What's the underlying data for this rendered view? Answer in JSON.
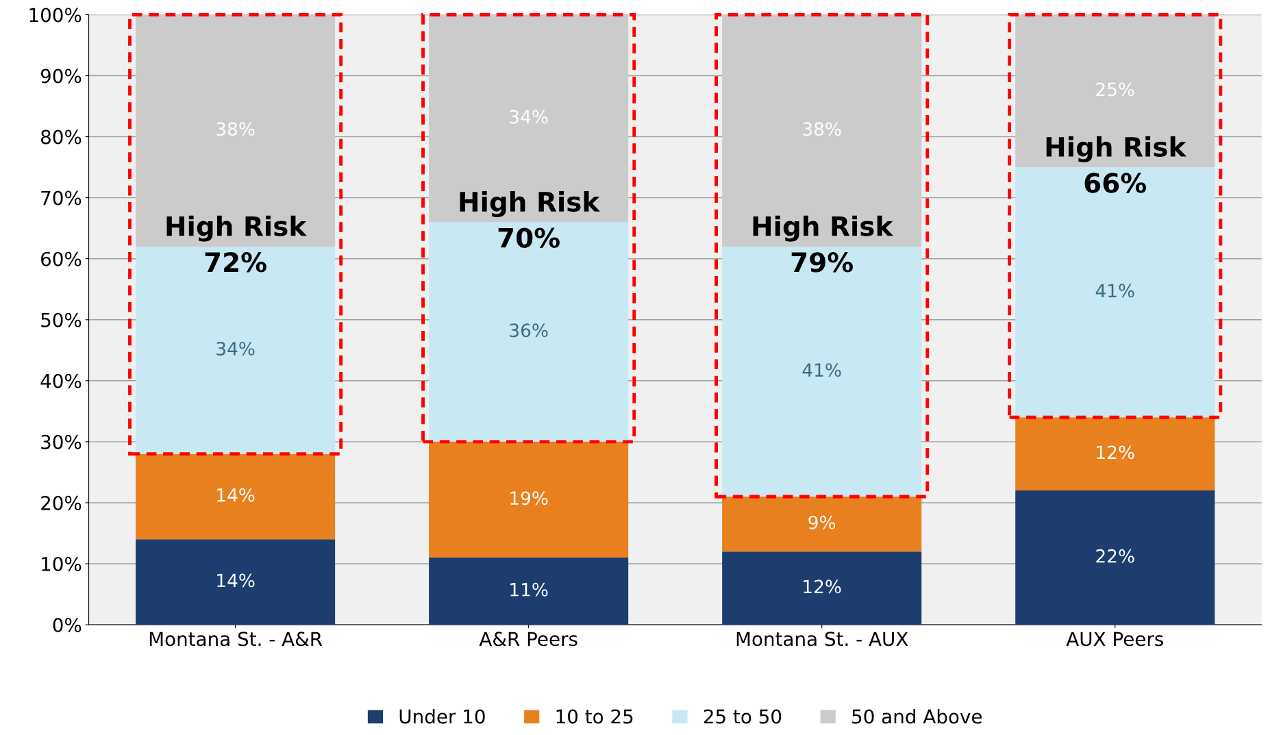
{
  "chart_data": {
    "type": "bar",
    "stacked": true,
    "categories": [
      "Montana St. - A&R",
      "A&R Peers",
      "Montana St. - AUX",
      "AUX Peers"
    ],
    "series": [
      {
        "name": "Under 10",
        "color": "#1c3d6e",
        "values": [
          14,
          11,
          12,
          22
        ],
        "value_labels": [
          "14%",
          "11%",
          "12%",
          "22%"
        ]
      },
      {
        "name": "10 to 25",
        "color": "#e8801f",
        "values": [
          14,
          19,
          9,
          12
        ],
        "value_labels": [
          "14%",
          "19%",
          "9%",
          "12%"
        ]
      },
      {
        "name": "25 to 50",
        "color": "#c8e8f3",
        "values": [
          34,
          36,
          41,
          41
        ],
        "value_labels": [
          "34%",
          "36%",
          "41%",
          "41%"
        ]
      },
      {
        "name": "50 and Above",
        "color": "#cbcbcb",
        "values": [
          38,
          34,
          38,
          25
        ],
        "value_labels": [
          "38%",
          "34%",
          "38%",
          "25%"
        ]
      }
    ],
    "ylim": [
      0,
      100
    ],
    "yticks": [
      {
        "value": 0,
        "label": "0%"
      },
      {
        "value": 10,
        "label": "10%"
      },
      {
        "value": 20,
        "label": "20%"
      },
      {
        "value": 30,
        "label": "30%"
      },
      {
        "value": 40,
        "label": "40%"
      },
      {
        "value": 50,
        "label": "50%"
      },
      {
        "value": 60,
        "label": "60%"
      },
      {
        "value": 70,
        "label": "70%"
      },
      {
        "value": 80,
        "label": "80%"
      },
      {
        "value": 90,
        "label": "90%"
      },
      {
        "value": 100,
        "label": "100%"
      }
    ],
    "grid": "y",
    "legend": "bottom",
    "annotations": [
      "High Risk\n72%",
      "High Risk\n70%",
      "High Risk\n79%",
      "High Risk\n66%"
    ]
  }
}
